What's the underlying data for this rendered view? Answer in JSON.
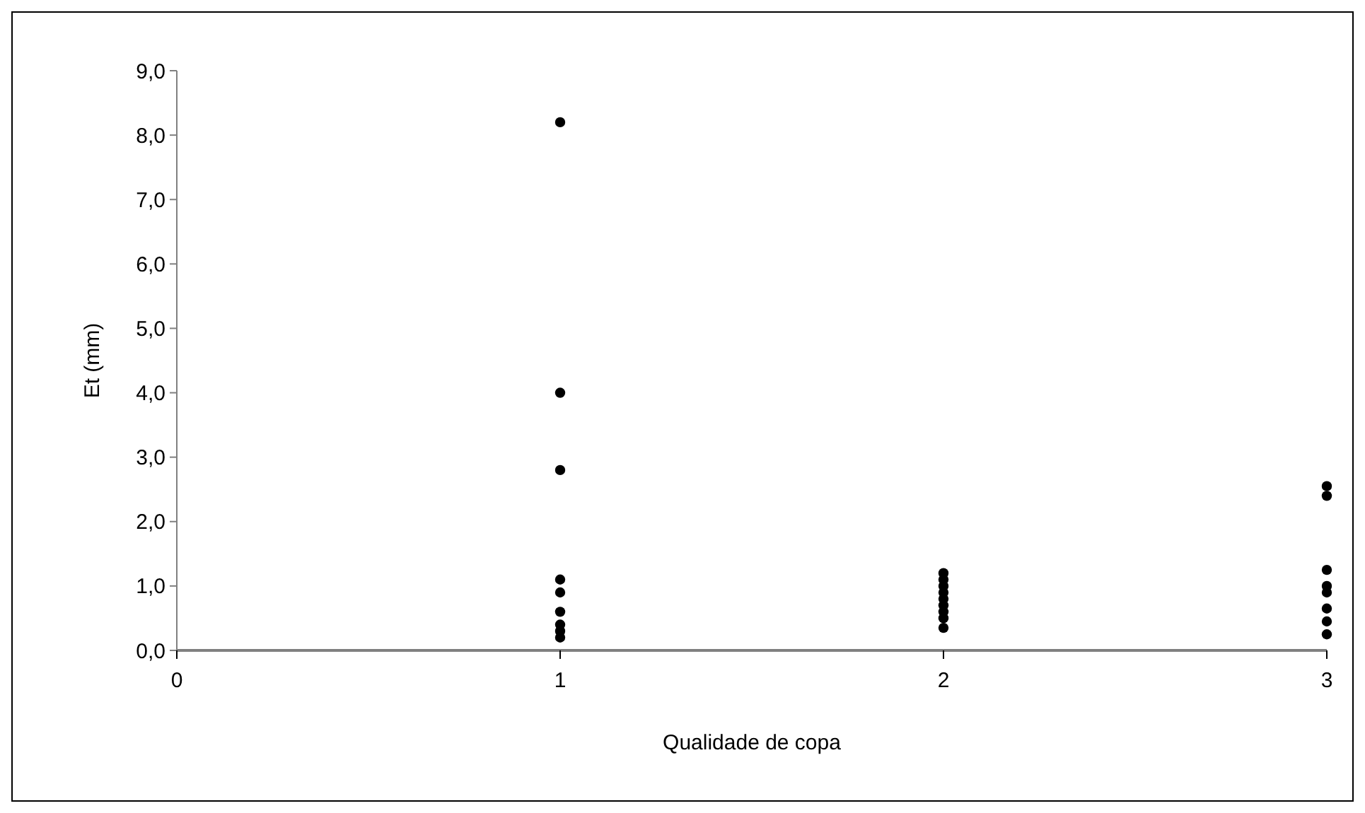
{
  "chart_data": {
    "type": "scatter",
    "xlabel": "Qualidade de copa",
    "ylabel": "Et (mm)",
    "marker": "circle",
    "grid": false,
    "xlim": [
      0,
      3
    ],
    "xticks": [
      0,
      1,
      2,
      3
    ],
    "ylim": [
      0,
      9
    ],
    "yticks": [
      {
        "value": 0,
        "label": "0,0"
      },
      {
        "value": 1,
        "label": "1,0"
      },
      {
        "value": 2,
        "label": "2,0"
      },
      {
        "value": 3,
        "label": "3,0"
      },
      {
        "value": 4,
        "label": "4,0"
      },
      {
        "value": 5,
        "label": "5,0"
      },
      {
        "value": 6,
        "label": "6,0"
      },
      {
        "value": 7,
        "label": "7,0"
      },
      {
        "value": 8,
        "label": "8,0"
      },
      {
        "value": 9,
        "label": "9,0"
      }
    ],
    "series": [
      {
        "color": "#000000",
        "x": [
          1,
          1,
          1,
          1,
          1,
          1,
          1,
          1,
          1,
          2,
          2,
          2,
          2,
          2,
          2,
          2,
          2,
          2,
          3,
          3,
          3,
          3,
          3,
          3,
          3,
          3
        ],
        "values": [
          8.2,
          4.0,
          2.8,
          1.1,
          0.9,
          0.6,
          0.4,
          0.3,
          0.2,
          1.2,
          1.1,
          1.0,
          0.9,
          0.8,
          0.7,
          0.6,
          0.5,
          0.35,
          2.55,
          2.4,
          1.25,
          1.0,
          0.9,
          0.65,
          0.45,
          0.25
        ]
      }
    ]
  }
}
